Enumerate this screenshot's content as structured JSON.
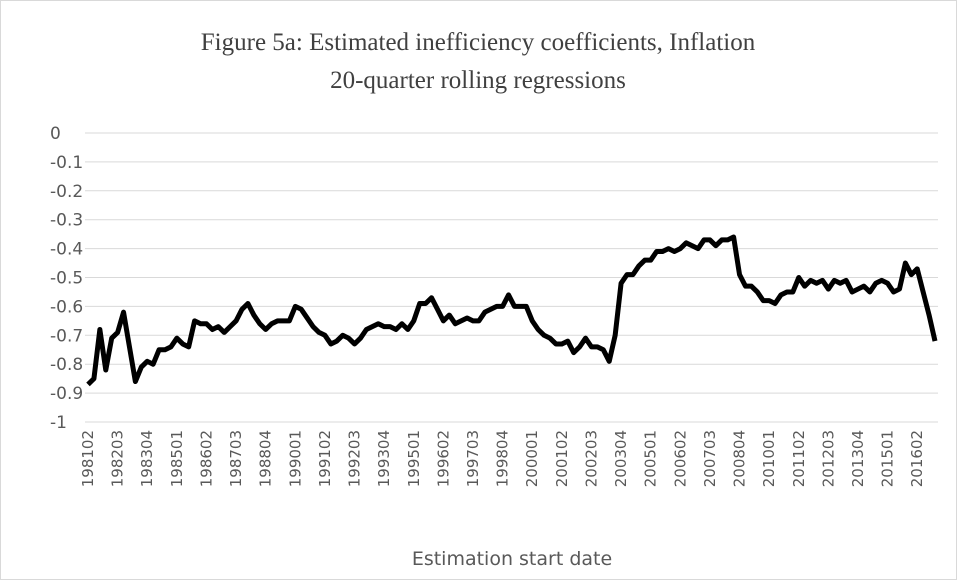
{
  "chart_data": {
    "type": "line",
    "title": "Figure 5a: Estimated inefficiency coefficients, Inflation",
    "subtitle": "20-quarter rolling regressions",
    "x_label": "Estimation start date",
    "categories": [
      "198102",
      null,
      null,
      null,
      null,
      "198203",
      null,
      null,
      null,
      null,
      "198304",
      null,
      null,
      null,
      null,
      "198501",
      null,
      null,
      null,
      null,
      "198602",
      null,
      null,
      null,
      null,
      "198703",
      null,
      null,
      null,
      null,
      "198804",
      null,
      null,
      null,
      null,
      "199001",
      null,
      null,
      null,
      null,
      "199102",
      null,
      null,
      null,
      null,
      "199203",
      null,
      null,
      null,
      null,
      "199304",
      null,
      null,
      null,
      null,
      "199501",
      null,
      null,
      null,
      null,
      "199602",
      null,
      null,
      null,
      null,
      "199703",
      null,
      null,
      null,
      null,
      "199804",
      null,
      null,
      null,
      null,
      "200001",
      null,
      null,
      null,
      null,
      "200102",
      null,
      null,
      null,
      null,
      "200203",
      null,
      null,
      null,
      null,
      "200304",
      null,
      null,
      null,
      null,
      "200501",
      null,
      null,
      null,
      null,
      "200602",
      null,
      null,
      null,
      null,
      "200703",
      null,
      null,
      null,
      null,
      "200804",
      null,
      null,
      null,
      null,
      "201001",
      null,
      null,
      null,
      null,
      "201102",
      null,
      null,
      null,
      null,
      "201203",
      null,
      null,
      null,
      null,
      "201304",
      null,
      null,
      null,
      null,
      "201501",
      null,
      null,
      null,
      null,
      "201602",
      null,
      null,
      null
    ],
    "values": [
      -0.87,
      -0.85,
      -0.68,
      -0.82,
      -0.71,
      -0.69,
      -0.62,
      -0.74,
      -0.86,
      -0.81,
      -0.79,
      -0.8,
      -0.75,
      -0.75,
      -0.74,
      -0.71,
      -0.73,
      -0.74,
      -0.65,
      -0.66,
      -0.66,
      -0.68,
      -0.67,
      -0.69,
      -0.67,
      -0.65,
      -0.61,
      -0.59,
      -0.63,
      -0.66,
      -0.68,
      -0.66,
      -0.65,
      -0.65,
      -0.65,
      -0.6,
      -0.61,
      -0.64,
      -0.67,
      -0.69,
      -0.7,
      -0.73,
      -0.72,
      -0.7,
      -0.71,
      -0.73,
      -0.71,
      -0.68,
      -0.67,
      -0.66,
      -0.67,
      -0.67,
      -0.68,
      -0.66,
      -0.68,
      -0.65,
      -0.59,
      -0.59,
      -0.57,
      -0.61,
      -0.65,
      -0.63,
      -0.66,
      -0.65,
      -0.64,
      -0.65,
      -0.65,
      -0.62,
      -0.61,
      -0.6,
      -0.6,
      -0.56,
      -0.6,
      -0.6,
      -0.6,
      -0.65,
      -0.68,
      -0.7,
      -0.71,
      -0.73,
      -0.73,
      -0.72,
      -0.76,
      -0.74,
      -0.71,
      -0.74,
      -0.74,
      -0.75,
      -0.79,
      -0.7,
      -0.52,
      -0.49,
      -0.49,
      -0.46,
      -0.44,
      -0.44,
      -0.41,
      -0.41,
      -0.4,
      -0.41,
      -0.4,
      -0.38,
      -0.39,
      -0.4,
      -0.37,
      -0.37,
      -0.39,
      -0.37,
      -0.37,
      -0.36,
      -0.49,
      -0.53,
      -0.53,
      -0.55,
      -0.58,
      -0.58,
      -0.59,
      -0.56,
      -0.55,
      -0.55,
      -0.5,
      -0.53,
      -0.51,
      -0.52,
      -0.51,
      -0.54,
      -0.51,
      -0.52,
      -0.51,
      -0.55,
      -0.54,
      -0.53,
      -0.55,
      -0.52,
      -0.51,
      -0.52,
      -0.55,
      -0.54,
      -0.45,
      -0.49,
      -0.47,
      -0.55,
      -0.63,
      -0.72
    ],
    "color": "#000000",
    "ylim": [
      -1,
      0
    ],
    "yticks": [
      0,
      -0.1,
      -0.2,
      -0.3,
      -0.4,
      -0.5,
      -0.6,
      -0.7,
      -0.8,
      -0.9,
      -1
    ],
    "grid": true
  }
}
